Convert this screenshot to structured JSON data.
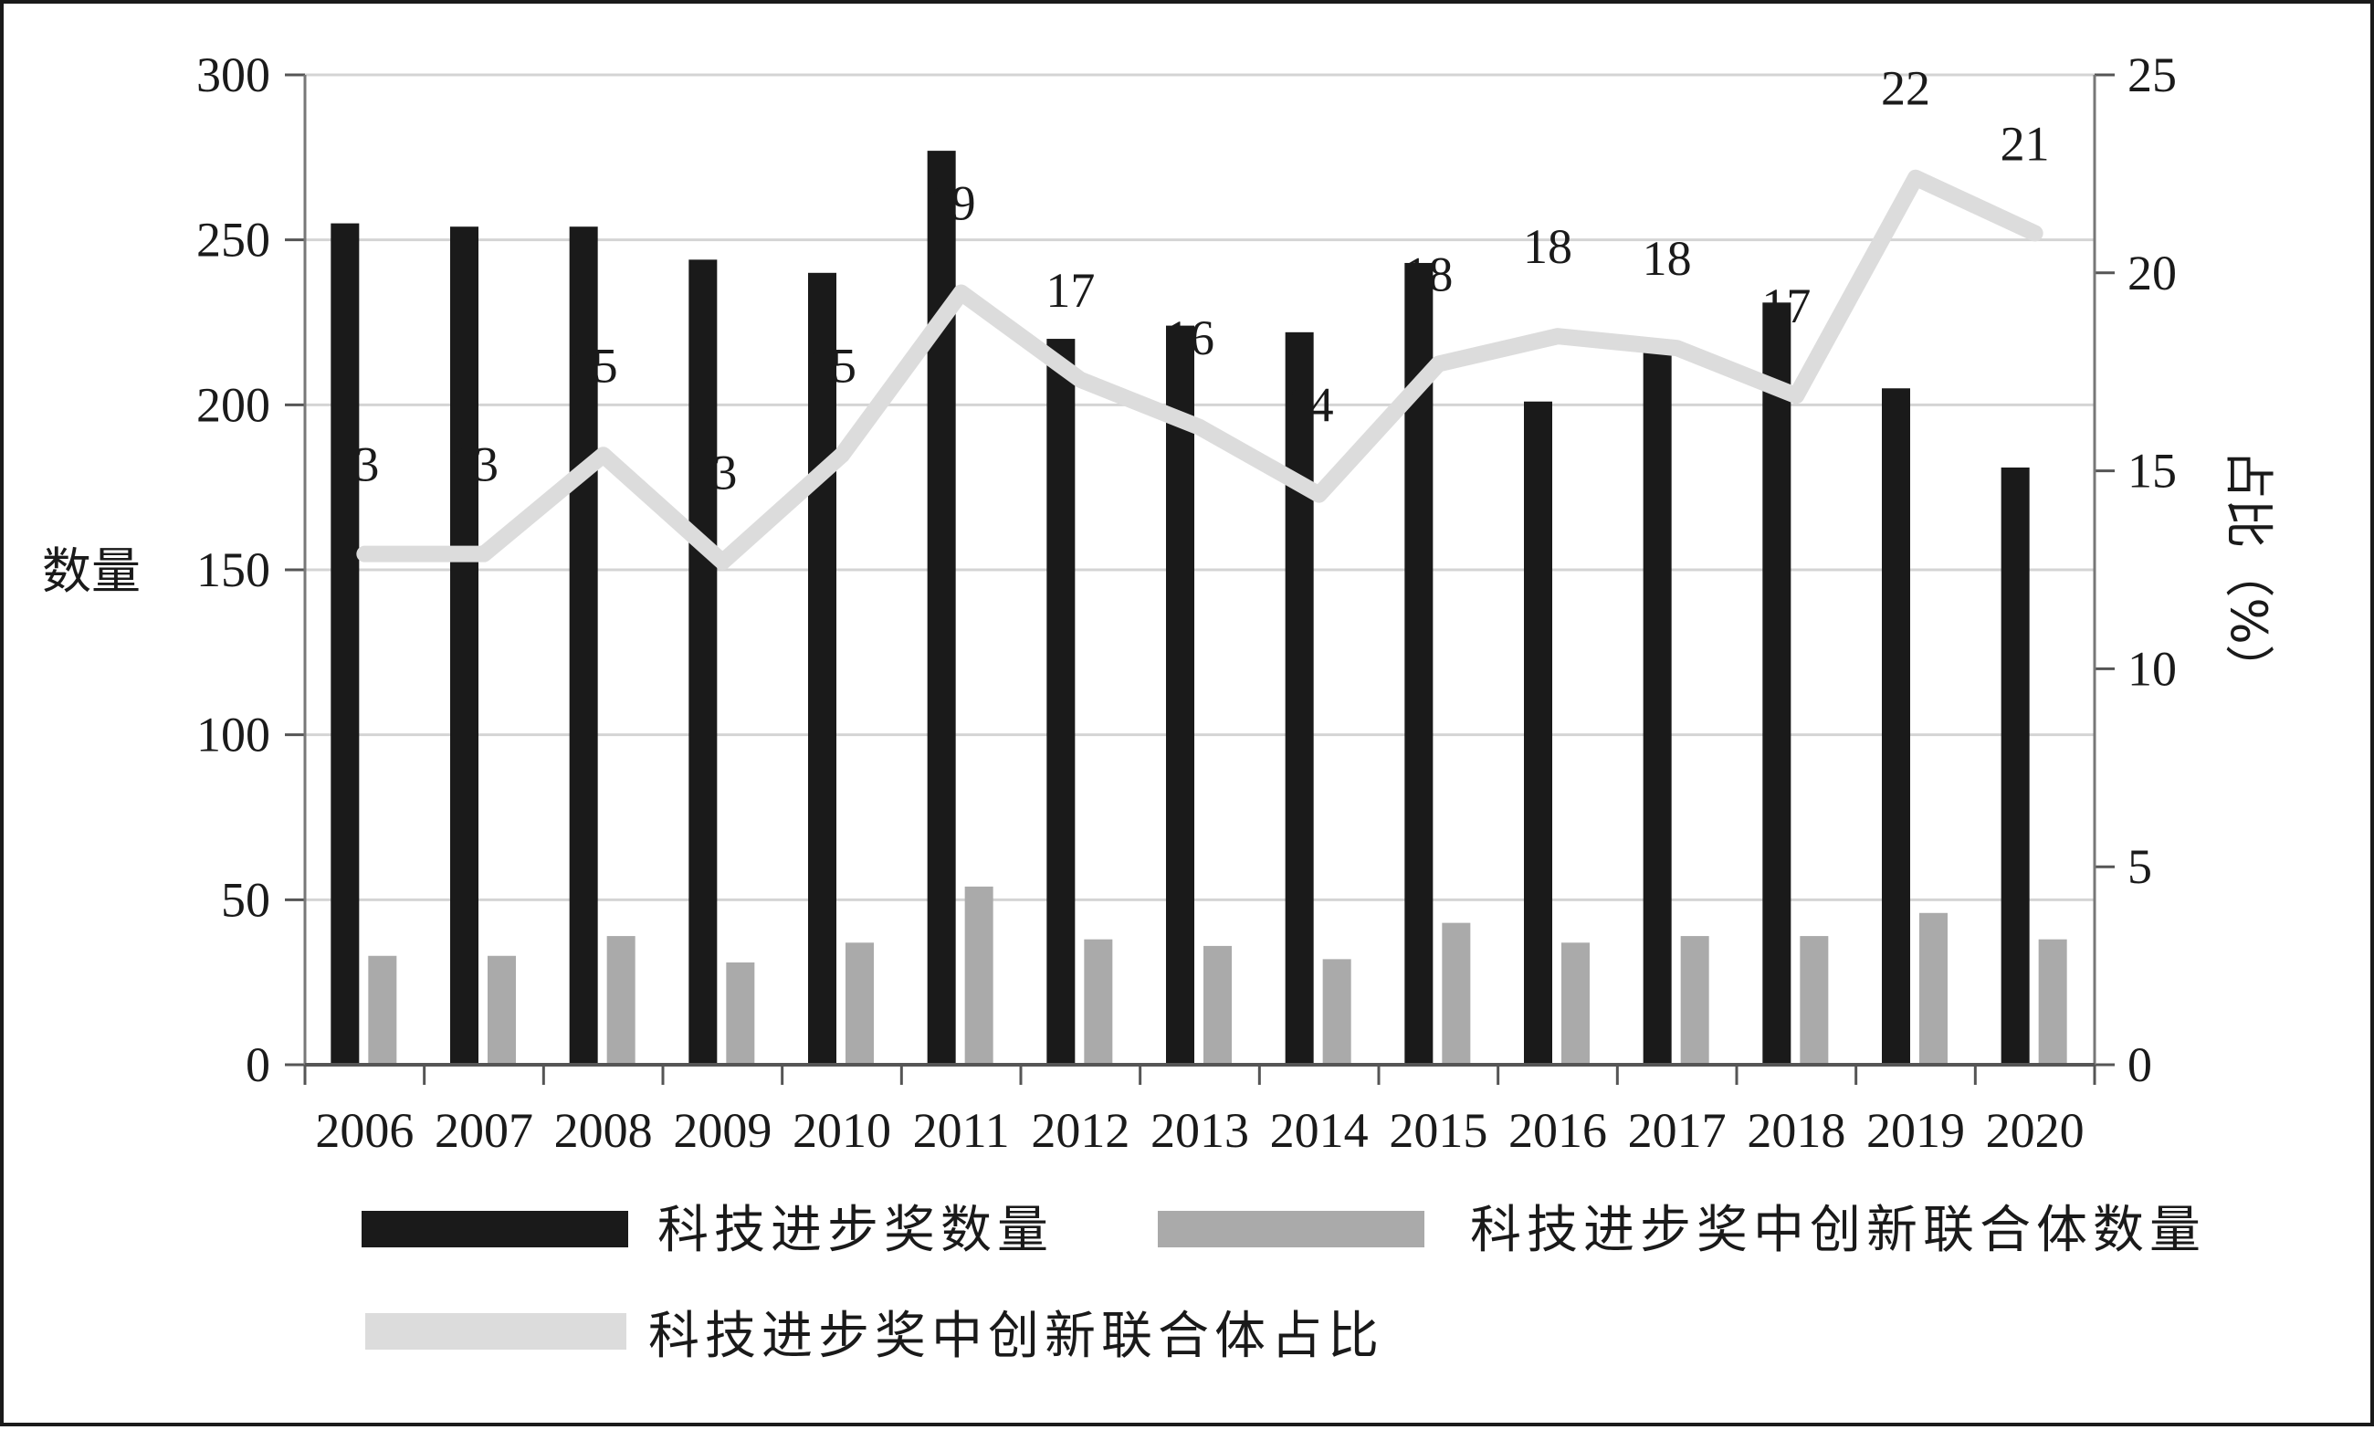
{
  "chart_data": {
    "type": "bar",
    "categories": [
      "2006",
      "2007",
      "2008",
      "2009",
      "2010",
      "2011",
      "2012",
      "2013",
      "2014",
      "2015",
      "2016",
      "2017",
      "2018",
      "2019",
      "2020"
    ],
    "series": [
      {
        "name": "科技进步奖数量",
        "type": "bar",
        "axis": "left",
        "color": "#1a1a1a",
        "values": [
          255,
          254,
          254,
          244,
          240,
          277,
          220,
          224,
          222,
          243,
          201,
          216,
          231,
          205,
          181
        ]
      },
      {
        "name": "科技进步奖中创新联合体数量",
        "type": "bar",
        "axis": "left",
        "color": "#aaaaaa",
        "values": [
          33,
          33,
          39,
          31,
          37,
          54,
          38,
          36,
          32,
          43,
          37,
          39,
          39,
          46,
          38
        ]
      },
      {
        "name": "科技进步奖中创新联合体占比",
        "type": "line",
        "axis": "right",
        "color": "#dcdcdc",
        "values": [
          12.9,
          12.9,
          15.4,
          12.7,
          15.4,
          19.5,
          17.3,
          16.1,
          14.4,
          17.7,
          18.4,
          18.1,
          16.9,
          22.4,
          21.0
        ],
        "labels": [
          "13",
          "13",
          "15",
          "13",
          "15",
          "19",
          "17",
          "16",
          "14",
          "18",
          "18",
          "18",
          "17",
          "22",
          "21"
        ]
      }
    ],
    "y_left": {
      "label": "数量",
      "range": [
        0,
        300
      ],
      "ticks": [
        "0",
        "50",
        "100",
        "150",
        "200",
        "250",
        "300"
      ]
    },
    "y_right": {
      "label": "占比（%）",
      "range": [
        0,
        25
      ],
      "ticks": [
        "0",
        "5",
        "10",
        "15",
        "20",
        "25"
      ]
    },
    "grid": true,
    "legend": {
      "position": "bottom"
    }
  }
}
